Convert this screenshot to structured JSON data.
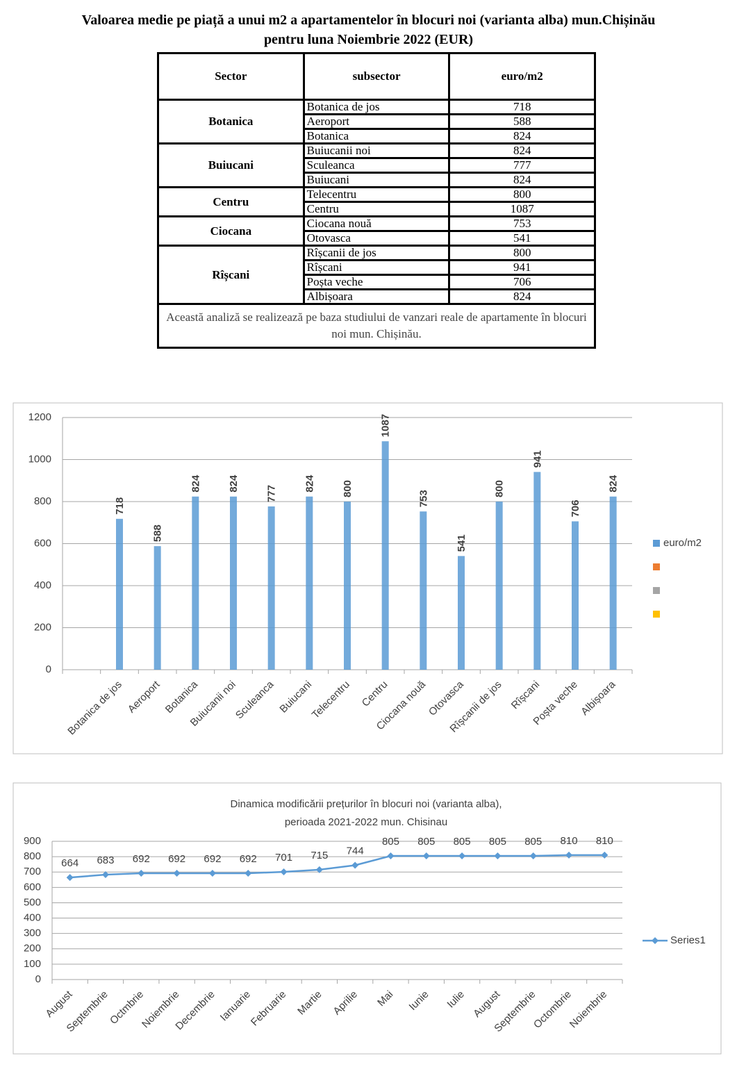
{
  "header": {
    "title": [
      "Valoarea medie pe piață a unui m2 a apartamentelor în blocuri noi (varianta alba) mun.Chișinău",
      "pentru luna Noiembrie 2022 (EUR)"
    ]
  },
  "table": {
    "headers": [
      "Sector",
      "subsector",
      "euro/m2"
    ],
    "groups": [
      {
        "sector": "Botanica",
        "rows": [
          {
            "subsector": "Botanica de jos",
            "value": 718
          },
          {
            "subsector": "Aeroport",
            "value": 588
          },
          {
            "subsector": "Botanica",
            "value": 824
          }
        ]
      },
      {
        "sector": "Buiucani",
        "rows": [
          {
            "subsector": "Buiucanii noi",
            "value": 824
          },
          {
            "subsector": "Sculeanca",
            "value": 777
          },
          {
            "subsector": "Buiucani",
            "value": 824
          }
        ]
      },
      {
        "sector": "Centru",
        "rows": [
          {
            "subsector": "Telecentru",
            "value": 800
          },
          {
            "subsector": "Centru",
            "value": 1087
          }
        ]
      },
      {
        "sector": "Ciocana",
        "rows": [
          {
            "subsector": "Ciocana nouă",
            "value": 753
          },
          {
            "subsector": "Otovasca",
            "value": 541
          }
        ]
      },
      {
        "sector": "Rîșcani",
        "rows": [
          {
            "subsector": "Rîșcanii de jos",
            "value": 800
          },
          {
            "subsector": "Rîșcani",
            "value": 941
          },
          {
            "subsector": "Poșta veche",
            "value": 706
          },
          {
            "subsector": "Albișoara",
            "value": 824
          }
        ]
      }
    ],
    "note": "Această analiză se realizează pe baza studiului de vanzari reale de apartamente în blocuri noi mun. Chișinău."
  },
  "chart_data": [
    {
      "type": "bar",
      "categories": [
        "Botanica de jos",
        "Aeroport",
        "Botanica",
        "Buiucanii noi",
        "Sculeanca",
        "Buiucani",
        "Telecentru",
        "Centru",
        "Ciocana nouă",
        "Otovasca",
        "Rîșcanii de jos",
        "Rîșcani",
        "Poșta veche",
        "Albișoara"
      ],
      "series": [
        {
          "name": "euro/m2",
          "color": "#5b9bd5",
          "values": [
            718,
            588,
            824,
            824,
            777,
            824,
            800,
            1087,
            753,
            541,
            800,
            941,
            706,
            824
          ]
        }
      ],
      "ylim": [
        0,
        1200
      ],
      "yticks": [
        0,
        200,
        400,
        600,
        800,
        1000,
        1200
      ],
      "grid": true,
      "legend": "right",
      "value_labels_shown": true
    },
    {
      "type": "line",
      "title": [
        "Dinamica modificării prețurilor în blocuri noi (varianta alba),",
        "perioada 2021-2022 mun. Chisinau"
      ],
      "categories": [
        "August",
        "Septembrie",
        "Octmbrie",
        "Noiembrie",
        "Decembrie",
        "Ianuarie",
        "Februarie",
        "Martie",
        "Aprilie",
        "Mai",
        "Iunie",
        "Iulie",
        "August",
        "Septembrie",
        "Octombrie",
        "Noiembrie"
      ],
      "series": [
        {
          "name": "Series1",
          "color": "#5b9bd5",
          "values": [
            664,
            683,
            692,
            692,
            692,
            692,
            701,
            715,
            744,
            805,
            805,
            805,
            805,
            805,
            810,
            810
          ]
        }
      ],
      "ylim": [
        0,
        900
      ],
      "yticks": [
        0,
        100,
        200,
        300,
        400,
        500,
        600,
        700,
        800,
        900
      ],
      "grid": true,
      "legend": "right",
      "value_labels_shown": true
    }
  ]
}
